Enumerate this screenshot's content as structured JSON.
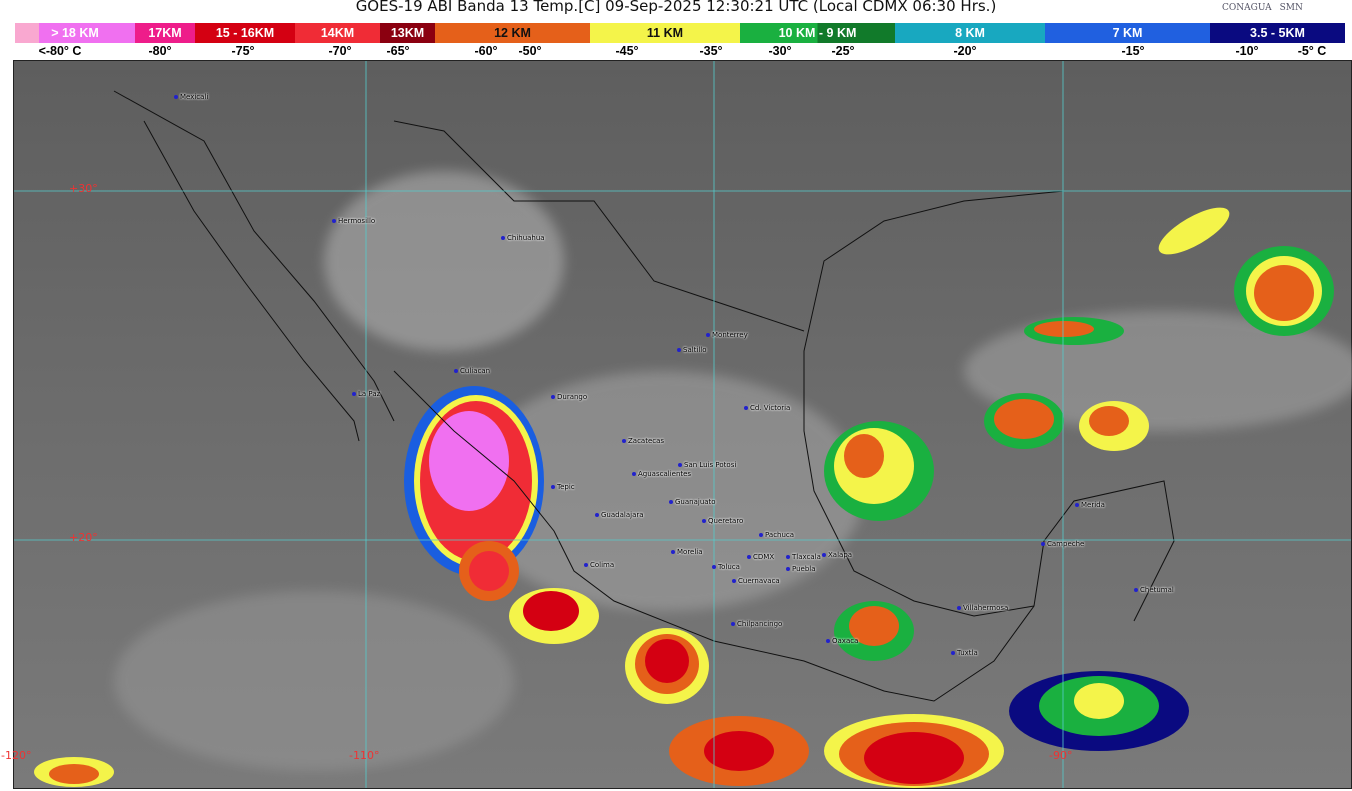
{
  "title": "GOES-19 ABI Banda 13 Temp.[C] 09-Sep-2025 12:30:21 UTC (Local CDMX  06:30 Hrs.)",
  "logos": {
    "conagua": "CONAGUA",
    "smn": "SMN"
  },
  "legend": [
    {
      "label": "> 18 KM",
      "color": "#f070f0"
    },
    {
      "label": "17KM",
      "color": "#ee1d8a"
    },
    {
      "label": "15 - 16KM",
      "color": "#d40012"
    },
    {
      "label": "14KM",
      "color": "#f02c36"
    },
    {
      "label": "13KM",
      "color": "#8b0010"
    },
    {
      "label": "12 KM",
      "color": "#e5601a"
    },
    {
      "label": "11 KM",
      "color": "#f4f44a"
    },
    {
      "label": "10 KM -  9 KM",
      "color": "#1ab040"
    },
    {
      "label": "8 KM",
      "color": "#18a8c0"
    },
    {
      "label": "7 KM",
      "color": "#2060e0"
    },
    {
      "label": "3.5 - 5KM",
      "color": "#0a0a80"
    }
  ],
  "temps": [
    "<-80° C",
    "-80°",
    "-75°",
    "-70°",
    "-65°",
    "-60°",
    "-50°",
    "-45°",
    "-35°",
    "-30°",
    "-25°",
    "-20°",
    "-15°",
    "-10°",
    "-5°  C"
  ],
  "grid_labels": {
    "lat30": "+30°",
    "lat20": "+20°",
    "lon120": "-120°",
    "lon110": "-110°",
    "lon90": "-90°"
  },
  "cities": [
    "Mexicali",
    "Hermosillo",
    "Chihuahua",
    "Culiacan",
    "La Paz",
    "Durango",
    "Monterrey",
    "Saltillo",
    "Cd. Victoria",
    "Zacatecas",
    "San Luis Potosi",
    "Aguascalientes",
    "Tepic",
    "Guadalajara",
    "Guanajuato",
    "Queretaro",
    "Pachuca",
    "Colima",
    "Morelia",
    "Toluca",
    "CDMX",
    "Tlaxcala",
    "Puebla",
    "Cuernavaca",
    "Xalapa",
    "Chilpancingo",
    "Oaxaca",
    "Villahermosa",
    "Tuxtla",
    "Merida",
    "Campeche",
    "Chetumal"
  ]
}
